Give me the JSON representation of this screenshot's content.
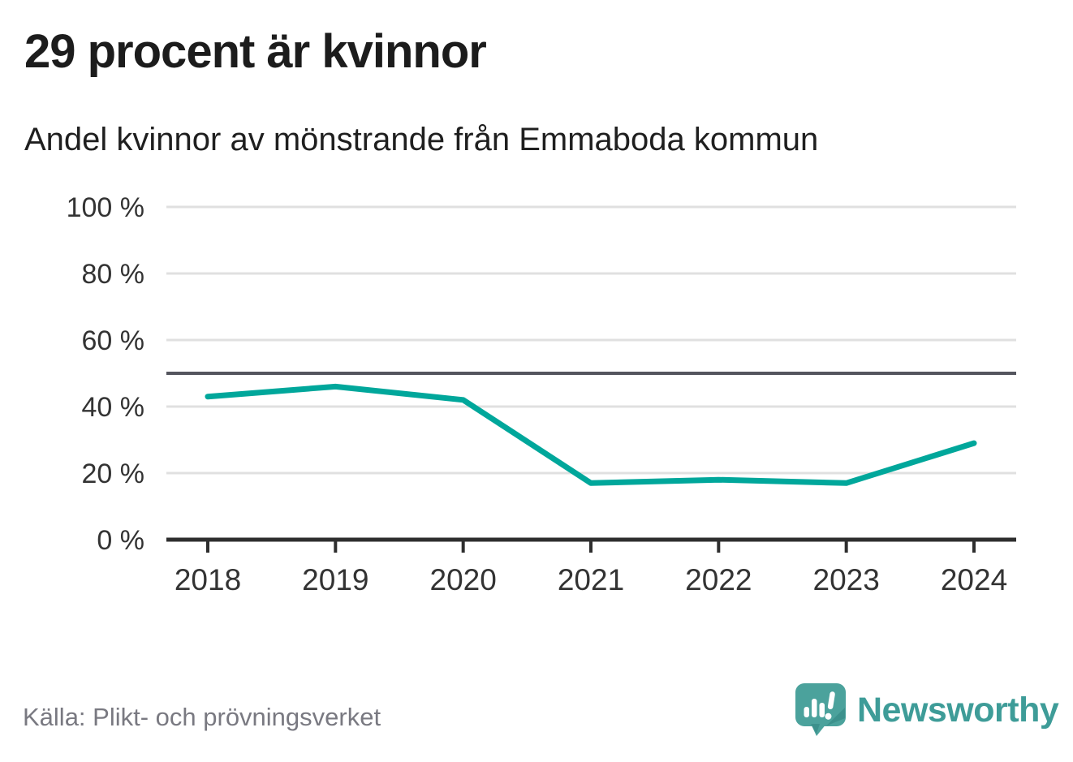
{
  "header": {
    "title": "29 procent är kvinnor",
    "subtitle": "Andel kvinnor av mönstrande från Emmaboda kommun"
  },
  "chart_data": {
    "type": "line",
    "title": "29 procent är kvinnor",
    "subtitle": "Andel kvinnor av mönstrande från Emmaboda kommun",
    "x": [
      "2018",
      "2019",
      "2020",
      "2021",
      "2022",
      "2023",
      "2024"
    ],
    "values": [
      43,
      46,
      42,
      17,
      18,
      17,
      29
    ],
    "unit": "%",
    "xlabel": "",
    "ylabel": "",
    "ylim": [
      0,
      100
    ],
    "yticks": [
      0,
      20,
      40,
      60,
      80,
      100
    ],
    "ytick_suffix": " %",
    "reference_line": 50,
    "grid": true,
    "legend_position": "none",
    "colors": {
      "line": "#00a79b",
      "grid": "#e0e0e0",
      "reference": "#54555e",
      "axis": "#2e2e2e",
      "label": "#333333"
    }
  },
  "footer": {
    "source": "Källa: Plikt- och prövningsverket",
    "logo_text": "Newsworthy",
    "brand_color": "#3e9c98",
    "logo_icon": "speech-bubble-bar-chart-exclamation"
  }
}
